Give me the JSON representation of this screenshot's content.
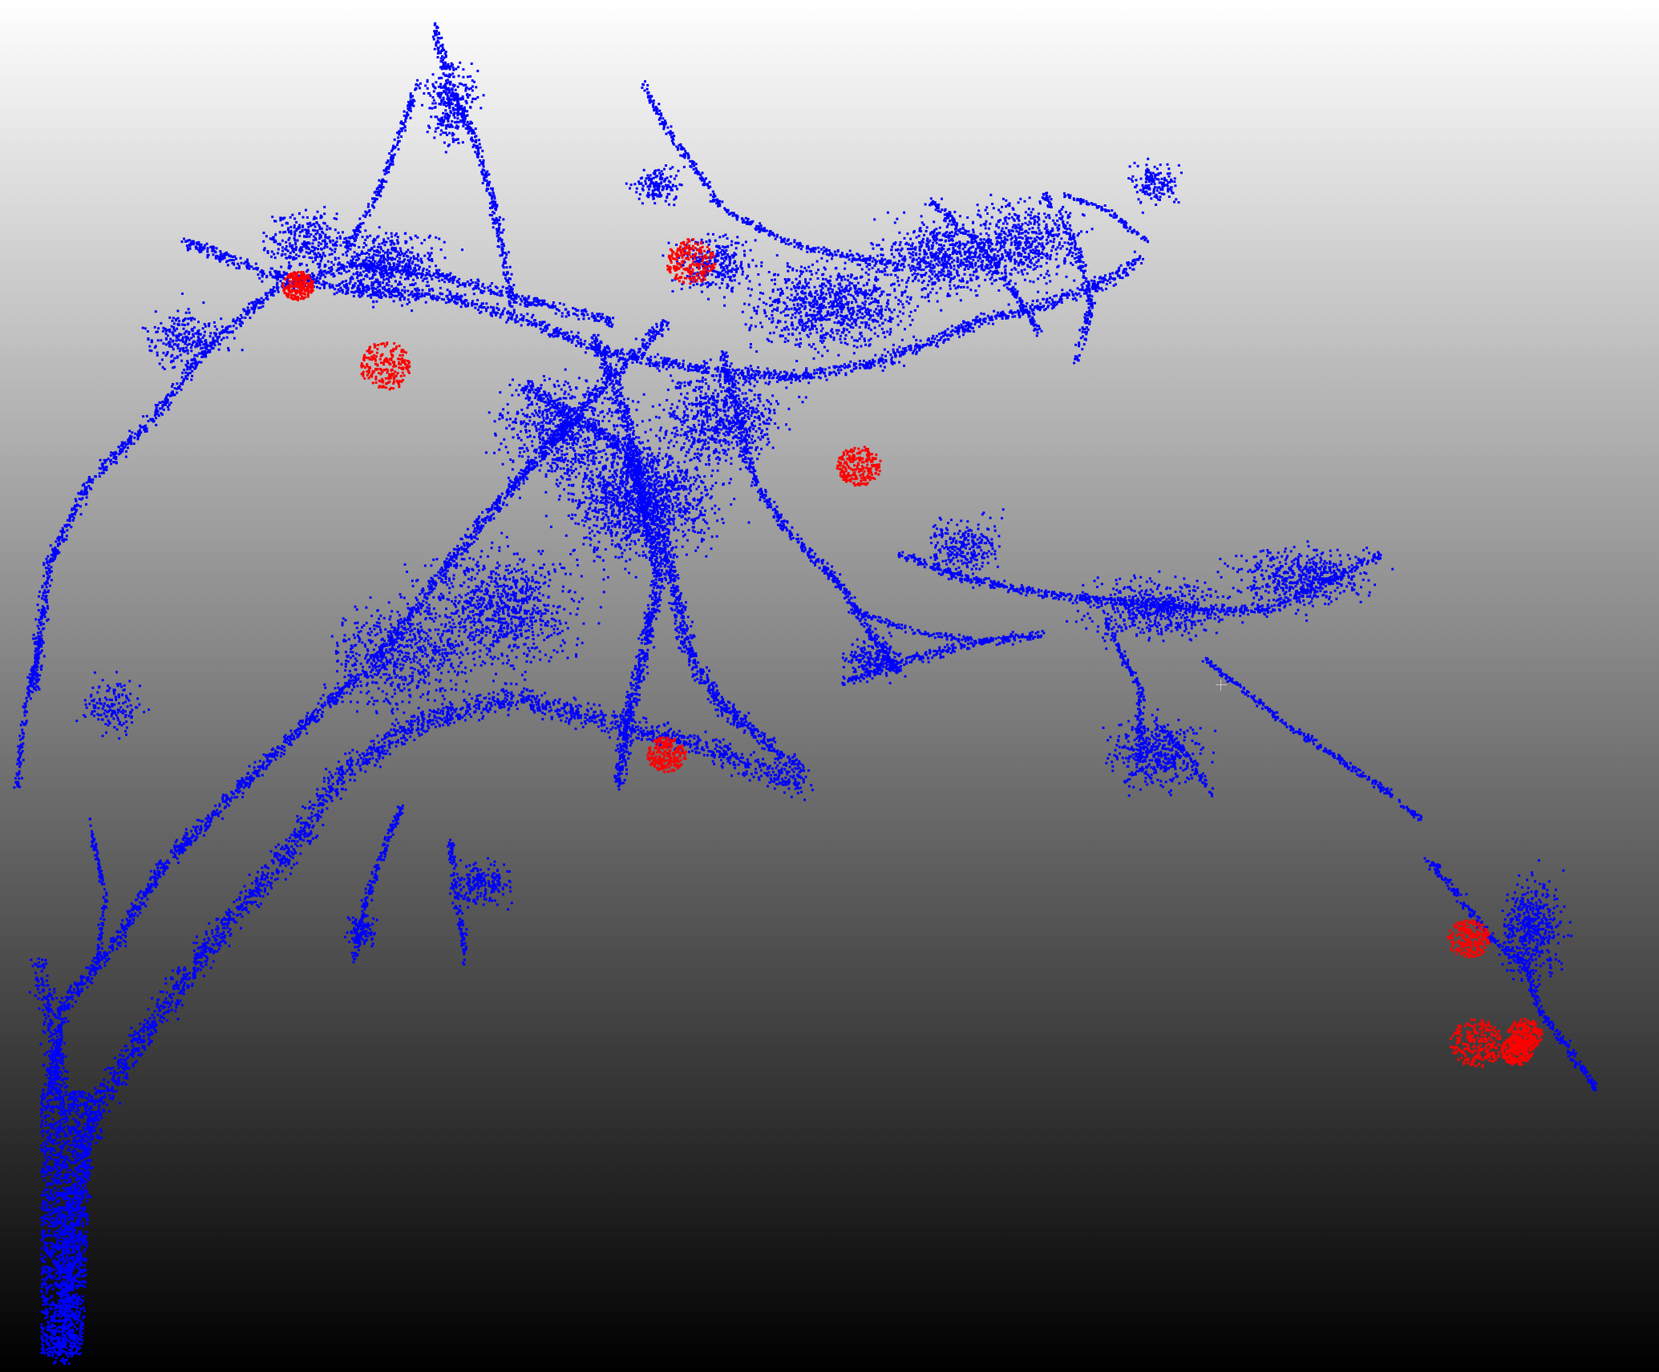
{
  "viewer": {
    "background": {
      "top": "#ffffff",
      "bottom": "#000000"
    },
    "point_colors": {
      "branches": "#0000ff",
      "fruit": "#ff0000"
    },
    "fruit_count": 9,
    "cursor_icon": "crosshair-icon"
  }
}
